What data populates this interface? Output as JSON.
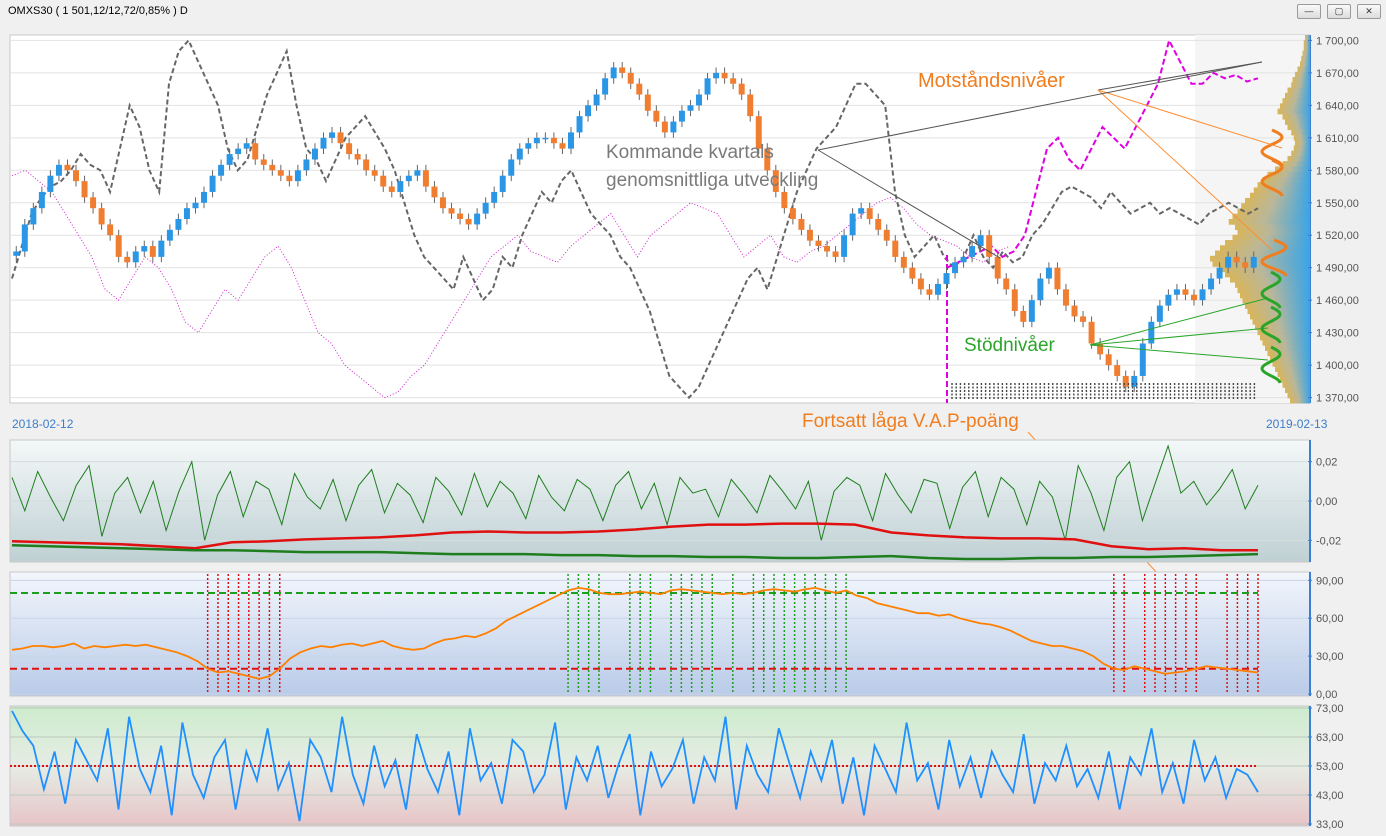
{
  "window": {
    "title": "OMXS30 ( 1 501,12/12,72/0,85% )  D",
    "minimize_glyph": "—",
    "restore_glyph": "▢",
    "close_glyph": "✕"
  },
  "chart_data": [
    {
      "type": "candlestick",
      "title": "OMXS30",
      "x_range": [
        "2018-02-12",
        "2019-02-13"
      ],
      "ylim": [
        1365,
        1705
      ],
      "yticks": [
        "1 700,00",
        "1 670,00",
        "1 640,00",
        "1 610,00",
        "1 580,00",
        "1 550,00",
        "1 520,00",
        "1 490,00",
        "1 460,00",
        "1 430,00",
        "1 400,00",
        "1 370,00"
      ],
      "ytick_values": [
        1700,
        1670,
        1640,
        1610,
        1580,
        1550,
        1520,
        1490,
        1460,
        1430,
        1400,
        1370
      ],
      "date_start": "2018-02-12",
      "date_end": "2019-02-13",
      "close": [
        1505,
        1530,
        1545,
        1560,
        1575,
        1585,
        1580,
        1570,
        1555,
        1545,
        1530,
        1520,
        1500,
        1495,
        1505,
        1510,
        1500,
        1515,
        1525,
        1535,
        1545,
        1550,
        1560,
        1575,
        1585,
        1595,
        1600,
        1605,
        1590,
        1585,
        1580,
        1575,
        1570,
        1580,
        1590,
        1600,
        1610,
        1615,
        1605,
        1595,
        1590,
        1580,
        1575,
        1565,
        1560,
        1570,
        1575,
        1580,
        1565,
        1555,
        1545,
        1540,
        1535,
        1530,
        1540,
        1550,
        1560,
        1575,
        1590,
        1600,
        1605,
        1610,
        1610,
        1605,
        1600,
        1615,
        1630,
        1640,
        1650,
        1665,
        1675,
        1670,
        1660,
        1650,
        1635,
        1625,
        1615,
        1625,
        1635,
        1640,
        1650,
        1665,
        1670,
        1665,
        1660,
        1650,
        1630,
        1600,
        1580,
        1560,
        1545,
        1535,
        1525,
        1515,
        1510,
        1505,
        1500,
        1520,
        1540,
        1545,
        1535,
        1525,
        1515,
        1500,
        1490,
        1480,
        1470,
        1465,
        1475,
        1485,
        1495,
        1500,
        1510,
        1520,
        1500,
        1480,
        1470,
        1450,
        1440,
        1460,
        1480,
        1490,
        1470,
        1455,
        1445,
        1440,
        1420,
        1410,
        1400,
        1390,
        1380,
        1390,
        1420,
        1440,
        1455,
        1465,
        1470,
        1465,
        1460,
        1470,
        1480,
        1490,
        1500,
        1495,
        1490,
        1500
      ],
      "moving_average": [
        1480,
        1510,
        1540,
        1555,
        1565,
        1570,
        1580,
        1595,
        1585,
        1580,
        1560,
        1600,
        1640,
        1620,
        1580,
        1560,
        1660,
        1690,
        1700,
        1680,
        1660,
        1640,
        1600,
        1580,
        1590,
        1620,
        1650,
        1670,
        1690,
        1640,
        1600,
        1590,
        1570,
        1590,
        1610,
        1620,
        1630,
        1615,
        1600,
        1580,
        1550,
        1520,
        1500,
        1490,
        1480,
        1470,
        1500,
        1480,
        1460,
        1470,
        1500,
        1490,
        1520,
        1540,
        1560,
        1550,
        1570,
        1580,
        1560,
        1540,
        1530,
        1520,
        1500,
        1490,
        1470,
        1450,
        1420,
        1390,
        1380,
        1370,
        1380,
        1400,
        1420,
        1440,
        1460,
        1480,
        1490,
        1470,
        1500,
        1530,
        1560,
        1580,
        1600,
        1610,
        1620,
        1640,
        1660,
        1660,
        1650,
        1640,
        1560,
        1520,
        1500,
        1510,
        1520,
        1500,
        1490,
        1500,
        1520,
        1500,
        1490,
        1505,
        1495,
        1500,
        1520,
        1530,
        1545,
        1560,
        1565,
        1560,
        1555,
        1545,
        1560,
        1550,
        1540,
        1545,
        1550,
        1540,
        1545,
        1540,
        1535,
        1530,
        1540,
        1545,
        1550,
        1545,
        1540,
        1545
      ],
      "projection": [
        1490,
        1495,
        1500,
        1505,
        1510,
        1500,
        1505,
        1520,
        1560,
        1600,
        1610,
        1590,
        1580,
        1600,
        1620,
        1610,
        1600,
        1620,
        1640,
        1660,
        1700,
        1680,
        1660,
        1660,
        1670,
        1665,
        1668,
        1662,
        1665
      ],
      "benchmark": [
        1575,
        1580,
        1570,
        1560,
        1540,
        1520,
        1500,
        1470,
        1460,
        1480,
        1500,
        1490,
        1470,
        1440,
        1430,
        1450,
        1470,
        1460,
        1480,
        1500,
        1510,
        1490,
        1460,
        1430,
        1420,
        1400,
        1390,
        1380,
        1370,
        1375,
        1390,
        1400,
        1420,
        1440,
        1460,
        1480,
        1500,
        1510,
        1520,
        1505,
        1500,
        1495,
        1510,
        1520,
        1530,
        1540,
        1520,
        1500,
        1520,
        1530,
        1540,
        1550,
        1545,
        1540,
        1520,
        1500,
        1510,
        1520,
        1500,
        1495,
        1505,
        1510,
        1520,
        1530,
        1540,
        1550,
        1555,
        1545,
        1530,
        1520,
        1515,
        1510,
        1500,
        1495,
        1505,
        1510
      ],
      "volume_profile": [
        4,
        5,
        5,
        6,
        7,
        8,
        10,
        12,
        14,
        15,
        18,
        20,
        22,
        24,
        26,
        22,
        20,
        18,
        15,
        13,
        12,
        13,
        15,
        18,
        22,
        28,
        34,
        38,
        42,
        45,
        48,
        52,
        55,
        58,
        62,
        65,
        60,
        58,
        62,
        68,
        72,
        76,
        80,
        78,
        72,
        68,
        64,
        60,
        58,
        56,
        54,
        52,
        50,
        48,
        46,
        44,
        42,
        40,
        38,
        36,
        34,
        32,
        30,
        28,
        26,
        24,
        22,
        20,
        18,
        16
      ],
      "annotations": {
        "resistance": "Motståndsnivåer",
        "quarterly": [
          "Kommande kvartals",
          "genomsnittliga utveckling"
        ],
        "support": "Stödnivåer",
        "vap": "Fortsatt låga V.A.P-poäng"
      },
      "date_labels": [
        "2018-02-12",
        "2019-02-13"
      ]
    },
    {
      "type": "line",
      "ylim": [
        -0.03,
        0.03
      ],
      "yticks": [
        "0,02",
        "0,00",
        "-0,02"
      ],
      "ytick_values": [
        0.02,
        0,
        -0.02
      ],
      "series": [
        {
          "color": "#1e7e1e",
          "values": [
            0.012,
            -0.005,
            0.015,
            0.002,
            -0.01,
            0.008,
            0.018,
            -0.018,
            0.004,
            0.012,
            -0.006,
            0.01,
            -0.015,
            0.005,
            0.02,
            -0.02,
            0.003,
            0.015,
            -0.008,
            0.01,
            0.006,
            -0.012,
            0.014,
            0.002,
            -0.004,
            0.011,
            -0.01,
            0.008,
            0.016,
            -0.006,
            0.009,
            0.003,
            -0.011,
            0.012,
            0.005,
            -0.007,
            0.014,
            -0.003,
            0.01,
            0.004,
            -0.009,
            0.013,
            0.002,
            -0.005,
            0.011,
            0.006,
            -0.01,
            0.008,
            0.015,
            -0.004,
            0.009,
            -0.012,
            0.012,
            0.004,
            0.006,
            -0.008,
            0.011,
            0.003,
            -0.006,
            0.013,
            0.005,
            -0.004,
            0.01,
            -0.02,
            0.005,
            0.012,
            0.008,
            -0.01,
            0.014,
            0.003,
            -0.006,
            0.011,
            0.009,
            -0.014,
            0.007,
            0.015,
            -0.008,
            0.012,
            0.006,
            -0.012,
            0.01,
            0.002,
            -0.02,
            0.018,
            0.004,
            -0.015,
            0.012,
            0.02,
            -0.01,
            0.009,
            0.028,
            0.004,
            0.01,
            -0.002,
            0.006,
            0.016,
            -0.004,
            0.008
          ]
        },
        {
          "color": "#e01010",
          "values": [
            -0.0205,
            -0.021,
            -0.0215,
            -0.022,
            -0.023,
            -0.024,
            -0.021,
            -0.0205,
            -0.0195,
            -0.019,
            -0.0185,
            -0.0175,
            -0.016,
            -0.0155,
            -0.016,
            -0.016,
            -0.0155,
            -0.0145,
            -0.013,
            -0.012,
            -0.012,
            -0.0115,
            -0.0115,
            -0.012,
            -0.016,
            -0.0175,
            -0.0185,
            -0.019,
            -0.019,
            -0.0195,
            -0.023,
            -0.0245,
            -0.024,
            -0.025,
            -0.025
          ]
        },
        {
          "color": "#1e7e1e",
          "values": [
            -0.0225,
            -0.023,
            -0.0235,
            -0.024,
            -0.0245,
            -0.025,
            -0.025,
            -0.0255,
            -0.026,
            -0.026,
            -0.026,
            -0.0265,
            -0.027,
            -0.027,
            -0.027,
            -0.0275,
            -0.0275,
            -0.028,
            -0.028,
            -0.0285,
            -0.0285,
            -0.029,
            -0.029,
            -0.0285,
            -0.028,
            -0.029,
            -0.0295,
            -0.0295,
            -0.029,
            -0.029,
            -0.0285,
            -0.0285,
            -0.028,
            -0.0275,
            -0.027
          ]
        }
      ]
    },
    {
      "type": "line",
      "ylim": [
        0,
        95
      ],
      "yticks": [
        "90,00",
        "60,00",
        "30,00",
        "0,00"
      ],
      "ytick_values": [
        90,
        60,
        30,
        0
      ],
      "upper_level": 80,
      "lower_level": 20,
      "series": [
        {
          "color": "#ff8000",
          "values": [
            35,
            36,
            38,
            38,
            37,
            38,
            40,
            36,
            38,
            37,
            38,
            39,
            38,
            39,
            37,
            35,
            33,
            30,
            26,
            20,
            17,
            18,
            16,
            14,
            12,
            14,
            20,
            28,
            33,
            36,
            38,
            37,
            39,
            40,
            38,
            40,
            42,
            38,
            36,
            35,
            36,
            40,
            43,
            44,
            46,
            45,
            48,
            52,
            58,
            62,
            66,
            70,
            74,
            78,
            82,
            84,
            83,
            80,
            79,
            79,
            80,
            81,
            80,
            79,
            82,
            83,
            82,
            81,
            80,
            79,
            80,
            79,
            80,
            82,
            83,
            82,
            81,
            83,
            84,
            82,
            80,
            82,
            78,
            76,
            72,
            70,
            68,
            66,
            64,
            64,
            62,
            63,
            60,
            58,
            56,
            55,
            53,
            50,
            46,
            42,
            40,
            38,
            38,
            36,
            34,
            30,
            24,
            20,
            19,
            22,
            20,
            18,
            16,
            17,
            18,
            20,
            22,
            21,
            20,
            19,
            18,
            17
          ]
        }
      ]
    },
    {
      "type": "line",
      "ylim": [
        33,
        73
      ],
      "yticks": [
        "73,00",
        "63,00",
        "53,00",
        "43,00",
        "33,00"
      ],
      "ytick_values": [
        73,
        63,
        53,
        43,
        33
      ],
      "threshold": 53,
      "series": [
        {
          "color": "#1e90ff",
          "values": [
            72,
            65,
            60,
            45,
            58,
            40,
            62,
            55,
            48,
            66,
            38,
            70,
            52,
            44,
            60,
            36,
            68,
            50,
            42,
            56,
            62,
            38,
            58,
            48,
            66,
            45,
            54,
            34,
            62,
            56,
            44,
            70,
            50,
            40,
            60,
            46,
            55,
            38,
            64,
            52,
            44,
            58,
            36,
            66,
            48,
            54,
            40,
            62,
            58,
            44,
            50,
            68,
            38,
            56,
            48,
            60,
            42,
            54,
            64,
            36,
            58,
            46,
            52,
            62,
            40,
            56,
            48,
            70,
            38,
            60,
            50,
            44,
            66,
            54,
            42,
            58,
            48,
            62,
            40,
            56,
            36,
            60,
            52,
            44,
            68,
            48,
            54,
            38,
            62,
            46,
            56,
            42,
            58,
            50,
            44,
            64,
            40,
            54,
            48,
            60,
            46,
            52,
            42,
            58,
            38,
            56,
            50,
            66,
            44,
            54,
            40,
            62,
            48,
            56,
            42,
            52,
            50,
            44
          ]
        }
      ]
    }
  ]
}
